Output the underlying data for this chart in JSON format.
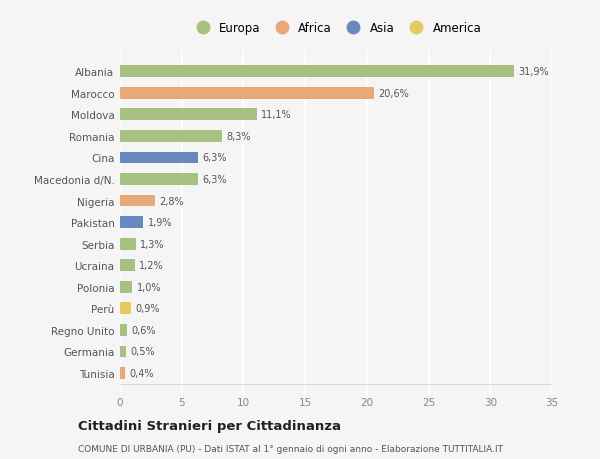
{
  "countries": [
    "Albania",
    "Marocco",
    "Moldova",
    "Romania",
    "Cina",
    "Macedonia d/N.",
    "Nigeria",
    "Pakistan",
    "Serbia",
    "Ucraina",
    "Polonia",
    "Perù",
    "Regno Unito",
    "Germania",
    "Tunisia"
  ],
  "values": [
    31.9,
    20.6,
    11.1,
    8.3,
    6.3,
    6.3,
    2.8,
    1.9,
    1.3,
    1.2,
    1.0,
    0.9,
    0.6,
    0.5,
    0.4
  ],
  "labels": [
    "31,9%",
    "20,6%",
    "11,1%",
    "8,3%",
    "6,3%",
    "6,3%",
    "2,8%",
    "1,9%",
    "1,3%",
    "1,2%",
    "1,0%",
    "0,9%",
    "0,6%",
    "0,5%",
    "0,4%"
  ],
  "continents": [
    "Europa",
    "Africa",
    "Europa",
    "Europa",
    "Asia",
    "Europa",
    "Africa",
    "Asia",
    "Europa",
    "Europa",
    "Europa",
    "America",
    "Europa",
    "Europa",
    "Africa"
  ],
  "continent_colors": {
    "Europa": "#a8c080",
    "Africa": "#e8a878",
    "Asia": "#6888c0",
    "America": "#e8c860"
  },
  "legend_order": [
    "Europa",
    "Africa",
    "Asia",
    "America"
  ],
  "title": "Cittadini Stranieri per Cittadinanza",
  "subtitle": "COMUNE DI URBANIA (PU) - Dati ISTAT al 1° gennaio di ogni anno - Elaborazione TUTTITALIA.IT",
  "xlim": [
    0,
    35
  ],
  "xticks": [
    0,
    5,
    10,
    15,
    20,
    25,
    30,
    35
  ],
  "background_color": "#f5f5f5",
  "grid_color": "#ffffff",
  "bar_height": 0.55
}
